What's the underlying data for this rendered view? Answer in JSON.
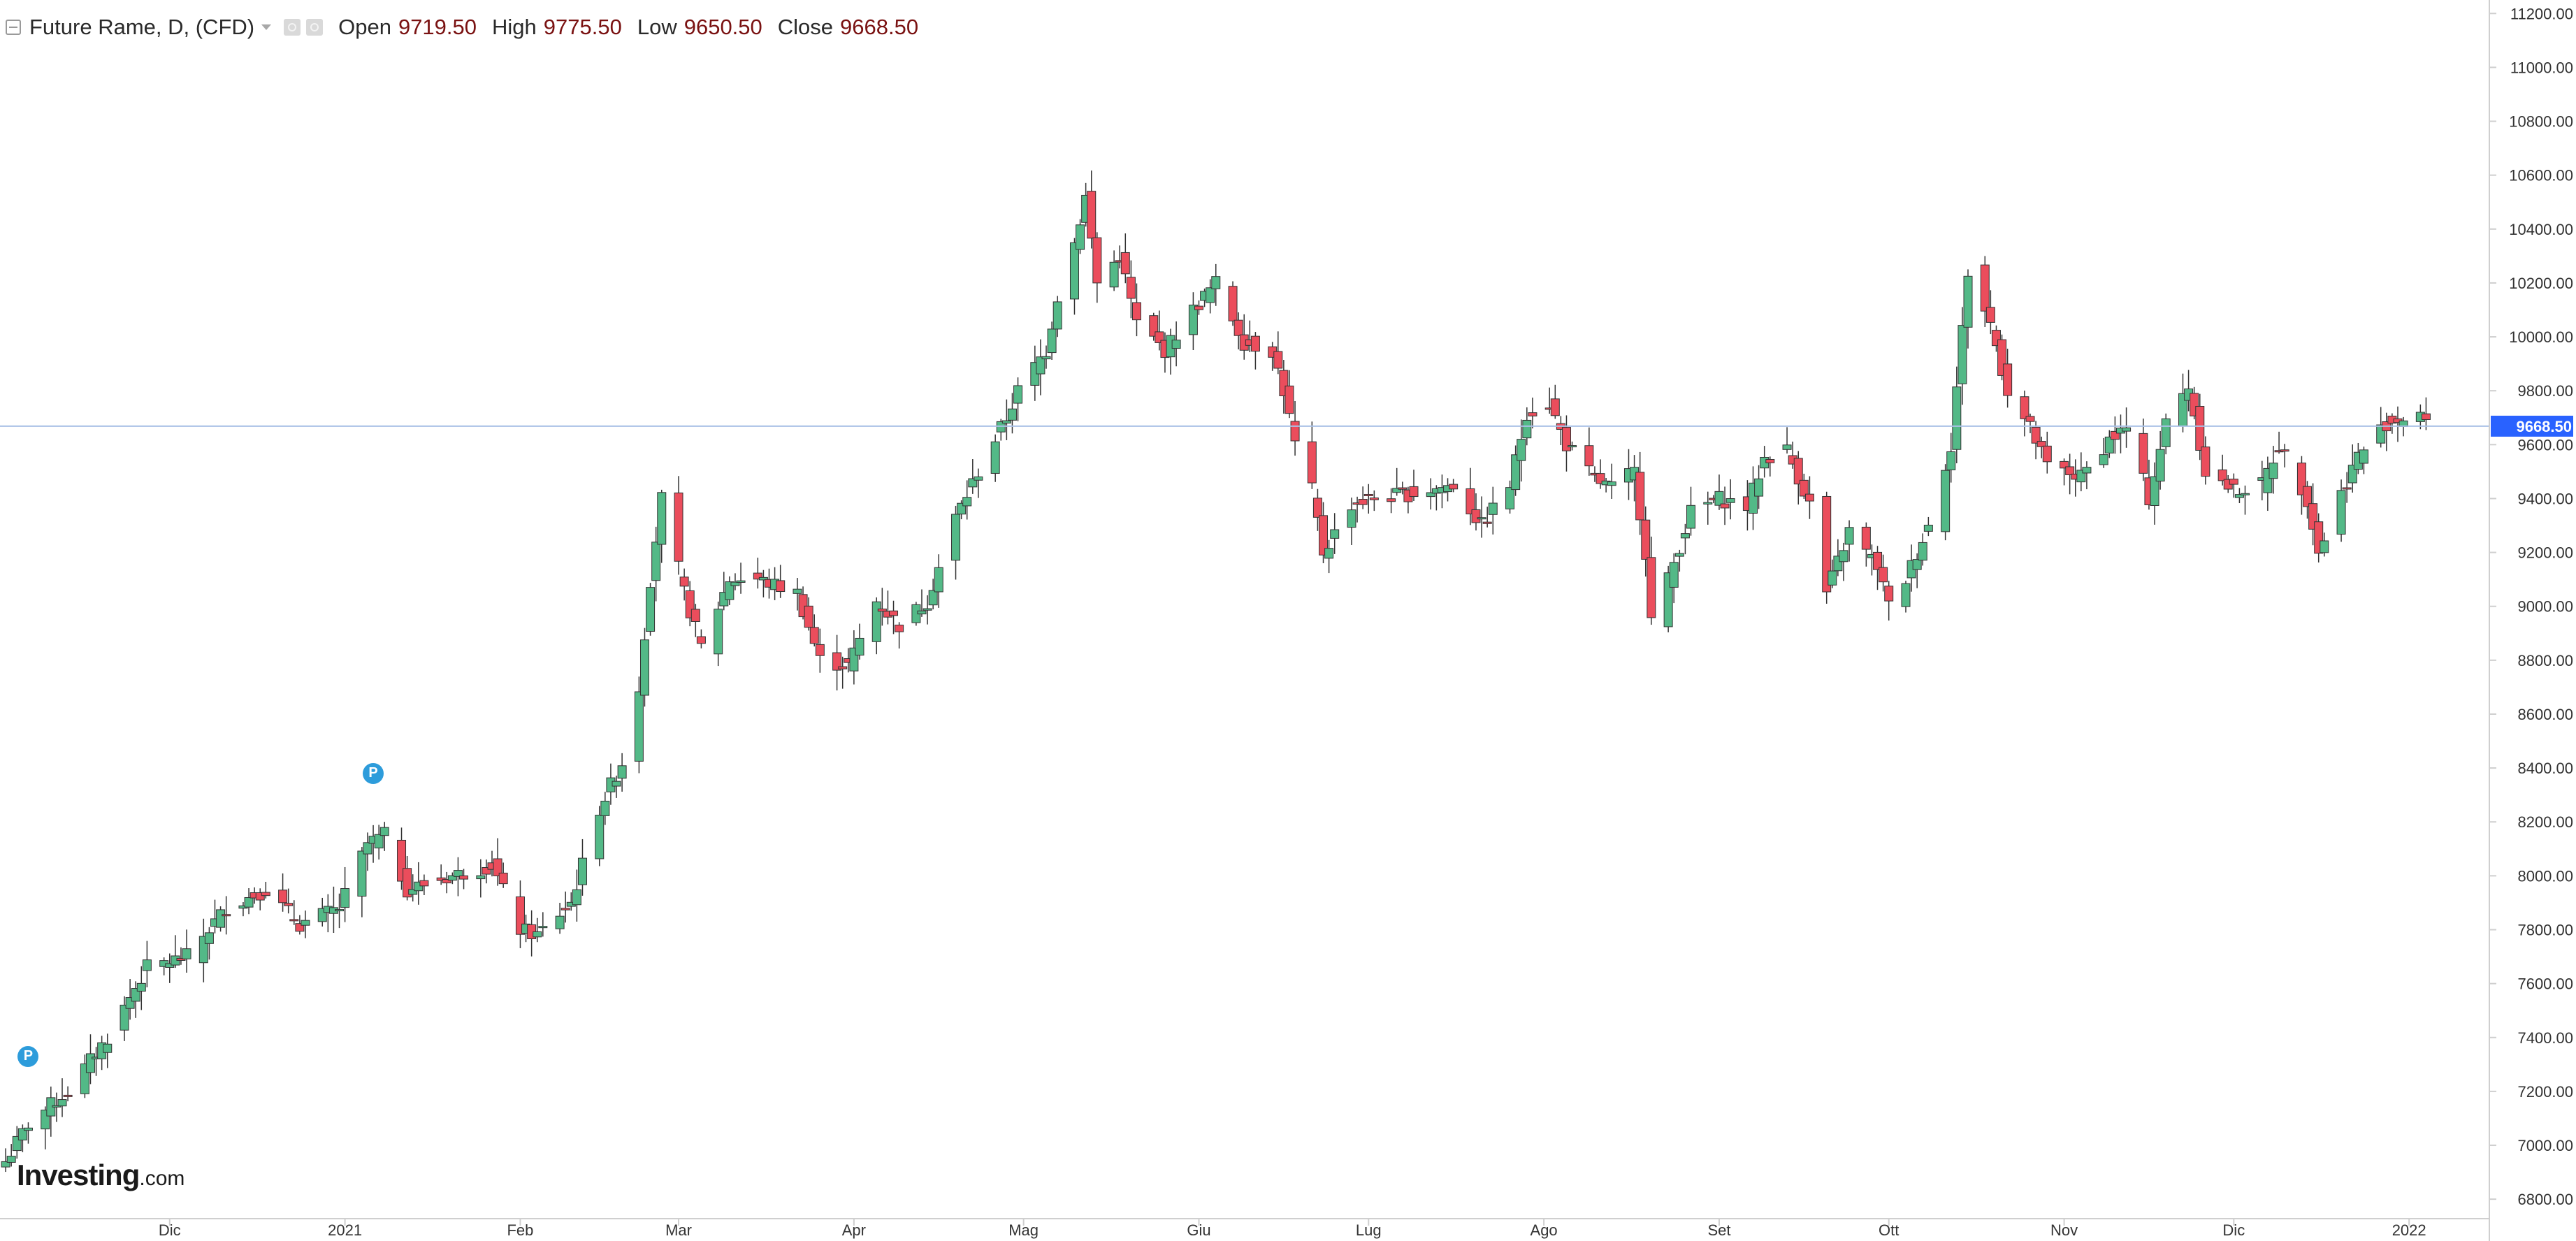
{
  "header": {
    "symbol": "Future Rame, D, (CFD)",
    "open_label": "Open",
    "open_value": "9719.50",
    "high_label": "High",
    "high_value": "9775.50",
    "low_label": "Low",
    "low_value": "9650.50",
    "close_label": "Close",
    "close_value": "9668.50"
  },
  "logo": {
    "name": "Investing",
    "suffix": ".com"
  },
  "markers": [
    {
      "label": "P",
      "date": "2020-11-06"
    },
    {
      "label": "P",
      "date": "2021-01-06"
    }
  ],
  "colors": {
    "up": "#53b987",
    "down": "#eb4d5c",
    "price_line": "#a9c1e6",
    "price_tag": "#2962ff"
  },
  "chart_data": {
    "type": "candlestick",
    "y_axis": {
      "range": [
        6650,
        11250
      ],
      "ticks": [
        "6800.00",
        "7000.00",
        "7200.00",
        "7400.00",
        "7600.00",
        "7800.00",
        "8000.00",
        "8200.00",
        "8400.00",
        "8600.00",
        "8800.00",
        "9000.00",
        "9200.00",
        "9400.00",
        "9600.00",
        "9800.00",
        "10000.00",
        "10200.00",
        "10400.00",
        "10600.00",
        "10800.00",
        "11000.00",
        "11200.00"
      ]
    },
    "x_axis": {
      "range": [
        "2020-11-01",
        "2022-01-10"
      ],
      "ticks": [
        {
          "date": "2020-12-01",
          "label": "Dic"
        },
        {
          "date": "2021-01-01",
          "label": "2021"
        },
        {
          "date": "2021-02-01",
          "label": "Feb"
        },
        {
          "date": "2021-03-01",
          "label": "Mar"
        },
        {
          "date": "2021-04-01",
          "label": "Apr"
        },
        {
          "date": "2021-05-01",
          "label": "Mag"
        },
        {
          "date": "2021-06-01",
          "label": "Giu"
        },
        {
          "date": "2021-07-01",
          "label": "Lug"
        },
        {
          "date": "2021-08-01",
          "label": "Ago"
        },
        {
          "date": "2021-09-01",
          "label": "Set"
        },
        {
          "date": "2021-10-01",
          "label": "Ott"
        },
        {
          "date": "2021-11-01",
          "label": "Nov"
        },
        {
          "date": "2021-12-01",
          "label": "Dic"
        },
        {
          "date": "2022-01-01",
          "label": "2022"
        }
      ]
    },
    "last_price": 9668.5,
    "last_price_label": "9668.50",
    "anchors": [
      {
        "date": "2020-11-02",
        "close": 6940
      },
      {
        "date": "2020-11-06",
        "close": 7080
      },
      {
        "date": "2020-11-13",
        "close": 7200
      },
      {
        "date": "2020-11-20",
        "close": 7400
      },
      {
        "date": "2020-11-27",
        "close": 7660
      },
      {
        "date": "2020-12-04",
        "close": 7700
      },
      {
        "date": "2020-12-11",
        "close": 7880
      },
      {
        "date": "2020-12-18",
        "close": 7950
      },
      {
        "date": "2020-12-24",
        "close": 7820
      },
      {
        "date": "2020-12-31",
        "close": 7880
      },
      {
        "date": "2021-01-05",
        "close": 8120
      },
      {
        "date": "2021-01-08",
        "close": 8150
      },
      {
        "date": "2021-01-12",
        "close": 7950
      },
      {
        "date": "2021-01-20",
        "close": 8000
      },
      {
        "date": "2021-01-27",
        "close": 8040
      },
      {
        "date": "2021-02-01",
        "close": 7800
      },
      {
        "date": "2021-02-04",
        "close": 7780
      },
      {
        "date": "2021-02-10",
        "close": 7900
      },
      {
        "date": "2021-02-15",
        "close": 8250
      },
      {
        "date": "2021-02-19",
        "close": 8420
      },
      {
        "date": "2021-02-22",
        "close": 8700
      },
      {
        "date": "2021-02-24",
        "close": 9100
      },
      {
        "date": "2021-02-26",
        "close": 9400
      },
      {
        "date": "2021-03-02",
        "close": 9050
      },
      {
        "date": "2021-03-05",
        "close": 8850
      },
      {
        "date": "2021-03-10",
        "close": 9100
      },
      {
        "date": "2021-03-15",
        "close": 9100
      },
      {
        "date": "2021-03-22",
        "close": 9050
      },
      {
        "date": "2021-03-26",
        "close": 8800
      },
      {
        "date": "2021-03-31",
        "close": 8780
      },
      {
        "date": "2021-04-05",
        "close": 9020
      },
      {
        "date": "2021-04-09",
        "close": 8930
      },
      {
        "date": "2021-04-14",
        "close": 9020
      },
      {
        "date": "2021-04-19",
        "close": 9330
      },
      {
        "date": "2021-04-23",
        "close": 9500
      },
      {
        "date": "2021-04-28",
        "close": 9700
      },
      {
        "date": "2021-04-30",
        "close": 9800
      },
      {
        "date": "2021-05-05",
        "close": 9950
      },
      {
        "date": "2021-05-07",
        "close": 10150
      },
      {
        "date": "2021-05-10",
        "close": 10350
      },
      {
        "date": "2021-05-12",
        "close": 10520
      },
      {
        "date": "2021-05-14",
        "close": 10200
      },
      {
        "date": "2021-05-18",
        "close": 10300
      },
      {
        "date": "2021-05-21",
        "close": 10050
      },
      {
        "date": "2021-05-26",
        "close": 9950
      },
      {
        "date": "2021-05-31",
        "close": 10100
      },
      {
        "date": "2021-06-04",
        "close": 10200
      },
      {
        "date": "2021-06-09",
        "close": 9980
      },
      {
        "date": "2021-06-14",
        "close": 9950
      },
      {
        "date": "2021-06-16",
        "close": 9800
      },
      {
        "date": "2021-06-18",
        "close": 9600
      },
      {
        "date": "2021-06-21",
        "close": 9430
      },
      {
        "date": "2021-06-23",
        "close": 9200
      },
      {
        "date": "2021-06-28",
        "close": 9380
      },
      {
        "date": "2021-07-02",
        "close": 9400
      },
      {
        "date": "2021-07-09",
        "close": 9420
      },
      {
        "date": "2021-07-16",
        "close": 9450
      },
      {
        "date": "2021-07-21",
        "close": 9300
      },
      {
        "date": "2021-07-26",
        "close": 9450
      },
      {
        "date": "2021-07-29",
        "close": 9720
      },
      {
        "date": "2021-08-02",
        "close": 9750
      },
      {
        "date": "2021-08-05",
        "close": 9600
      },
      {
        "date": "2021-08-10",
        "close": 9470
      },
      {
        "date": "2021-08-13",
        "close": 9440
      },
      {
        "date": "2021-08-17",
        "close": 9500
      },
      {
        "date": "2021-08-19",
        "close": 9200
      },
      {
        "date": "2021-08-20",
        "close": 8950
      },
      {
        "date": "2021-08-23",
        "close": 9100
      },
      {
        "date": "2021-08-27",
        "close": 9350
      },
      {
        "date": "2021-09-01",
        "close": 9400
      },
      {
        "date": "2021-09-06",
        "close": 9370
      },
      {
        "date": "2021-09-09",
        "close": 9550
      },
      {
        "date": "2021-09-13",
        "close": 9580
      },
      {
        "date": "2021-09-17",
        "close": 9380
      },
      {
        "date": "2021-09-20",
        "close": 9050
      },
      {
        "date": "2021-09-24",
        "close": 9280
      },
      {
        "date": "2021-09-29",
        "close": 9150
      },
      {
        "date": "2021-10-01",
        "close": 9000
      },
      {
        "date": "2021-10-04",
        "close": 9100
      },
      {
        "date": "2021-10-08",
        "close": 9300
      },
      {
        "date": "2021-10-12",
        "close": 9600
      },
      {
        "date": "2021-10-15",
        "close": 10240
      },
      {
        "date": "2021-10-19",
        "close": 10050
      },
      {
        "date": "2021-10-22",
        "close": 9800
      },
      {
        "date": "2021-10-26",
        "close": 9660
      },
      {
        "date": "2021-10-29",
        "close": 9520
      },
      {
        "date": "2021-11-04",
        "close": 9480
      },
      {
        "date": "2021-11-09",
        "close": 9620
      },
      {
        "date": "2021-11-12",
        "close": 9660
      },
      {
        "date": "2021-11-16",
        "close": 9400
      },
      {
        "date": "2021-11-19",
        "close": 9680
      },
      {
        "date": "2021-11-23",
        "close": 9820
      },
      {
        "date": "2021-11-26",
        "close": 9500
      },
      {
        "date": "2021-12-01",
        "close": 9430
      },
      {
        "date": "2021-12-06",
        "close": 9450
      },
      {
        "date": "2021-12-09",
        "close": 9600
      },
      {
        "date": "2021-12-14",
        "close": 9400
      },
      {
        "date": "2021-12-16",
        "close": 9200
      },
      {
        "date": "2021-12-20",
        "close": 9420
      },
      {
        "date": "2021-12-23",
        "close": 9560
      },
      {
        "date": "2021-12-28",
        "close": 9680
      },
      {
        "date": "2022-01-03",
        "close": 9719.5
      },
      {
        "date": "2022-01-04",
        "close": 9668.5
      }
    ]
  }
}
